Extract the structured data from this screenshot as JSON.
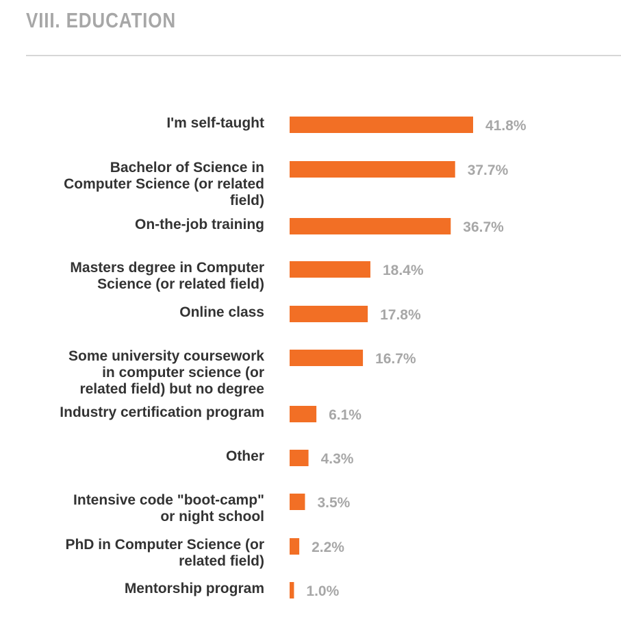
{
  "section": {
    "title": "VIII. EDUCATION"
  },
  "colors": {
    "bar": "#f26f25",
    "value_text": "#a7a7a7",
    "label_text": "#333333",
    "title_text": "#a7a7a7"
  },
  "chart_data": {
    "type": "bar",
    "orientation": "horizontal",
    "title": "",
    "xlabel": "",
    "ylabel": "",
    "grid": false,
    "xlim": [
      0,
      41.8
    ],
    "categories": [
      "I'm self-taught",
      "Bachelor of Science in Computer Science (or related field)",
      "On-the-job training",
      "Masters degree in Computer Science (or related field)",
      "Online class",
      "Some university coursework in computer science (or related field) but no degree",
      "Industry certification program",
      "Other",
      "Intensive code \"boot-camp\" or night school",
      "PhD in Computer Science (or related field)",
      "Mentorship program"
    ],
    "category_label_lines": [
      [
        "I'm self-taught"
      ],
      [
        "Bachelor of Science in",
        "Computer Science (or related",
        "field)"
      ],
      [
        "On-the-job training"
      ],
      [
        "Masters degree in Computer",
        "Science (or related field)"
      ],
      [
        "Online class"
      ],
      [
        "Some university coursework",
        "in computer science (or",
        "related field) but no degree"
      ],
      [
        "Industry certification program"
      ],
      [
        "Other"
      ],
      [
        "Intensive code \"boot-camp\"",
        "or night school"
      ],
      [
        "PhD in Computer Science (or",
        "related field)"
      ],
      [
        "Mentorship program"
      ]
    ],
    "values": [
      41.8,
      37.7,
      36.7,
      18.4,
      17.8,
      16.7,
      6.1,
      4.3,
      3.5,
      2.2,
      1.0
    ],
    "value_labels": [
      "41.8%",
      "37.7%",
      "36.7%",
      "18.4%",
      "17.8%",
      "16.7%",
      "6.1%",
      "4.3%",
      "3.5%",
      "2.2%",
      "1.0%"
    ]
  }
}
